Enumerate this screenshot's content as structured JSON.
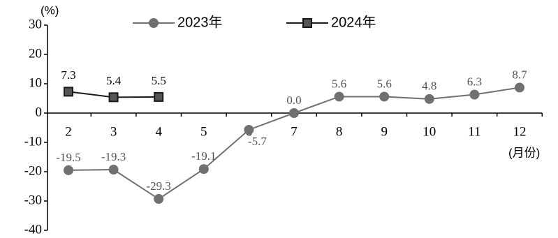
{
  "chart_data": {
    "type": "line",
    "y_unit": "(%)",
    "x_unit": "(月份)",
    "categories": [
      "2",
      "3",
      "4",
      "5",
      "6",
      "7",
      "8",
      "9",
      "10",
      "11",
      "12"
    ],
    "series": [
      {
        "name": "2023年",
        "color": "#707070",
        "marker": "circle",
        "values": [
          -19.5,
          -19.3,
          -29.3,
          -19.1,
          -5.7,
          0.0,
          5.6,
          5.6,
          4.8,
          6.3,
          8.7
        ],
        "value_labels": [
          "-19.5",
          "-19.3",
          "-29.3",
          "-19.1",
          "-5.7",
          "0.0",
          "5.6",
          "5.6",
          "4.8",
          "6.3",
          "8.7"
        ]
      },
      {
        "name": "2024年",
        "color": "#1a1a1a",
        "marker": "square",
        "values": [
          7.3,
          5.4,
          5.5,
          null,
          null,
          null,
          null,
          null,
          null,
          null,
          null
        ]
      }
    ],
    "ylim": [
      -40,
      30
    ],
    "yticks": [
      30,
      20,
      10,
      0,
      -10,
      -20,
      -30,
      -40
    ]
  }
}
